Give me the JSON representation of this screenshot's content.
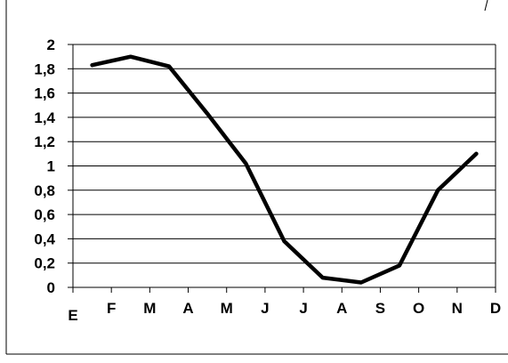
{
  "chart_data": {
    "type": "line",
    "categories": [
      "E",
      "F",
      "M",
      "A",
      "M",
      "J",
      "J",
      "A",
      "S",
      "O",
      "N",
      "D"
    ],
    "x": [
      "E",
      "F",
      "M",
      "A",
      "M",
      "J",
      "J",
      "A",
      "S",
      "O",
      "N",
      "D"
    ],
    "series": [
      {
        "values": [
          1.83,
          1.9,
          1.82,
          1.43,
          1.02,
          0.38,
          0.08,
          0.04,
          0.18,
          0.8,
          1.1,
          null
        ]
      }
    ],
    "y_tick_labels": [
      "0",
      "0,2",
      "0,4",
      "0,6",
      "0,8",
      "1",
      "1,2",
      "1,4",
      "1,6",
      "1,8",
      "2"
    ],
    "ylim": [
      0,
      2
    ],
    "grid": true,
    "colors": {
      "line": "#000000",
      "grid": "#000000",
      "background": "#ffffff"
    }
  }
}
